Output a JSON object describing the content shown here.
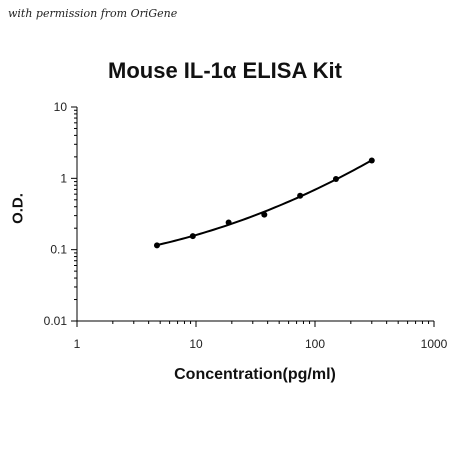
{
  "watermark": "with permission from OriGene",
  "chart_data": {
    "type": "scatter",
    "title": "Mouse IL-1α ELISA Kit",
    "xlabel": "Concentration(pg/ml)",
    "ylabel": "O.D.",
    "xscale": "log",
    "yscale": "log",
    "xlim": [
      1,
      1000
    ],
    "ylim": [
      0.01,
      10
    ],
    "xticks": [
      "1",
      "10",
      "100",
      "1000"
    ],
    "yticks": [
      "0.01",
      "0.1",
      "1",
      "10"
    ],
    "grid": false,
    "legend": "none",
    "series": [
      {
        "x": [
          4.7,
          9.4,
          18.8,
          37.5,
          75,
          150,
          300
        ],
        "y": [
          0.115,
          0.155,
          0.24,
          0.31,
          0.57,
          0.98,
          1.78
        ],
        "marker": "dot",
        "fit_line": true,
        "color": "#000000"
      }
    ]
  }
}
